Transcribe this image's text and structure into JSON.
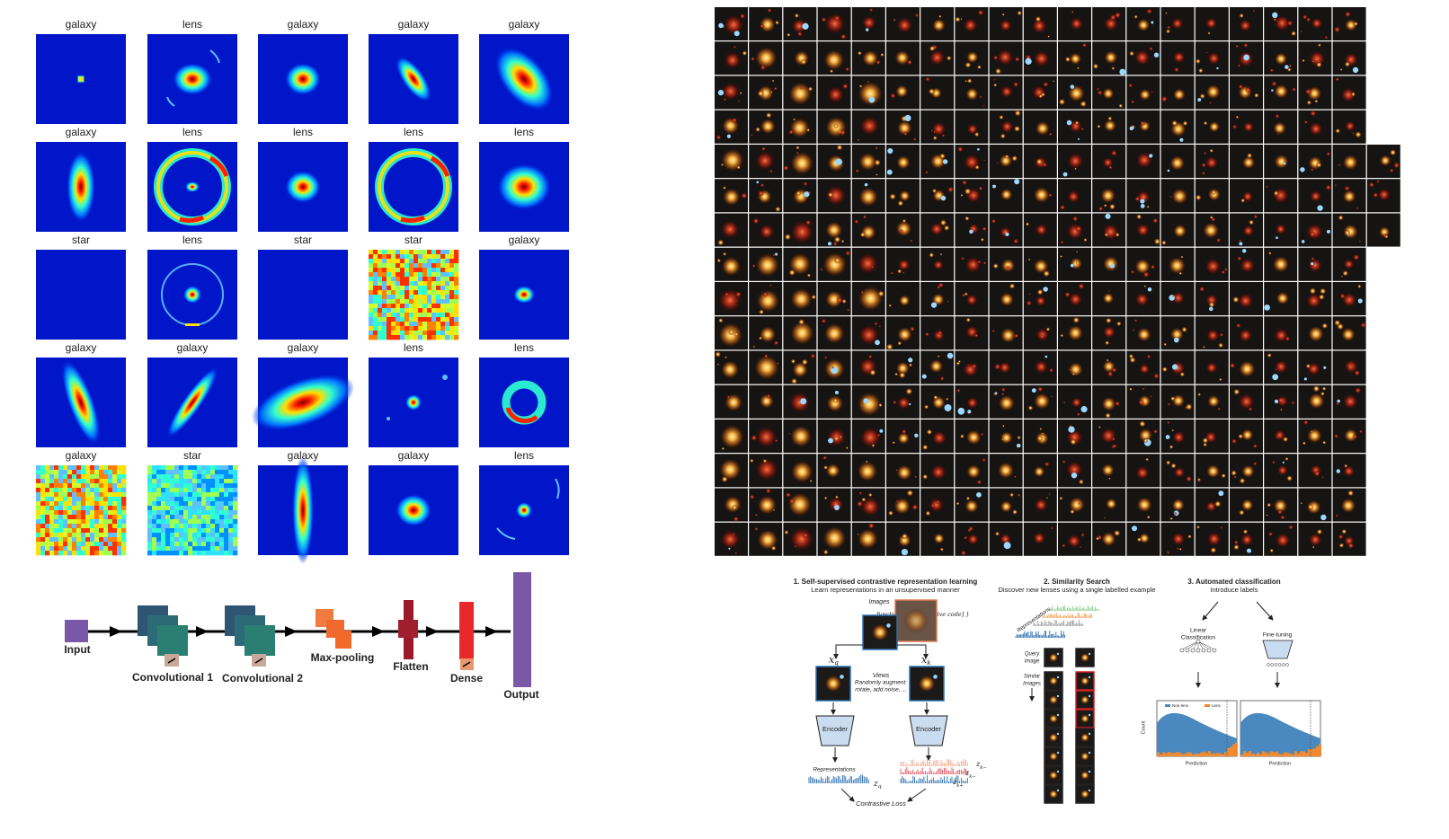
{
  "simulations": {
    "labels": [
      [
        "galaxy",
        "lens",
        "galaxy",
        "galaxy",
        "galaxy"
      ],
      [
        "galaxy",
        "lens",
        "lens",
        "lens",
        "lens"
      ],
      [
        "star",
        "lens",
        "star",
        "star",
        "galaxy"
      ],
      [
        "galaxy",
        "galaxy",
        "galaxy",
        "lens",
        "lens"
      ],
      [
        "galaxy",
        "star",
        "galaxy",
        "galaxy",
        "lens"
      ]
    ]
  },
  "cnn": {
    "input": "Input",
    "conv1": "Convolutional 1",
    "conv2": "Convolutional 2",
    "maxpool": "Max-pooling",
    "flatten": "Flatten",
    "dense": "Dense",
    "output": "Output"
  },
  "pipeline": {
    "step1": {
      "title": "1. Self-supervised contrastive representation learning",
      "subtitle": "Learn representations in an unsupervised manner",
      "images": "Images",
      "x": "x",
      "xq": {
        "base": "x",
        "sub": "q"
      },
      "xk": {
        "base": "x",
        "sub": "k"
      },
      "views": "Views",
      "augment": "Randomly augment:",
      "augment_ops": "rotate, add noise, ...",
      "encoder_left": "Encoder",
      "encoder_right": "Encoder",
      "representations": "Representations",
      "zq": {
        "base": "z",
        "sub": "q"
      },
      "zk_neg1": {
        "base": "z",
        "sub": "k−"
      },
      "zk_neg2": {
        "base": "z",
        "sub": "k−"
      },
      "zk_pos": {
        "base": "z",
        "sub": "k+"
      },
      "loss": "Contrastive Loss"
    },
    "step2": {
      "title": "2. Similarity Search",
      "subtitle": "Discover new lenses using a single labelled example",
      "representations": "Representations",
      "query": [
        "Query",
        "Image"
      ],
      "similar": [
        "Similar",
        "Images"
      ]
    },
    "step3": {
      "title": "3. Automated classification",
      "subtitle": "Introduce labels",
      "linear": [
        "Linear",
        "Classification"
      ],
      "finetune": "Fine-tuning",
      "legend": [
        "Non-lens",
        "Lens"
      ],
      "ylabel": "Count",
      "xlabel_left": "Prediction",
      "xlabel_right": "Prediction"
    }
  }
}
